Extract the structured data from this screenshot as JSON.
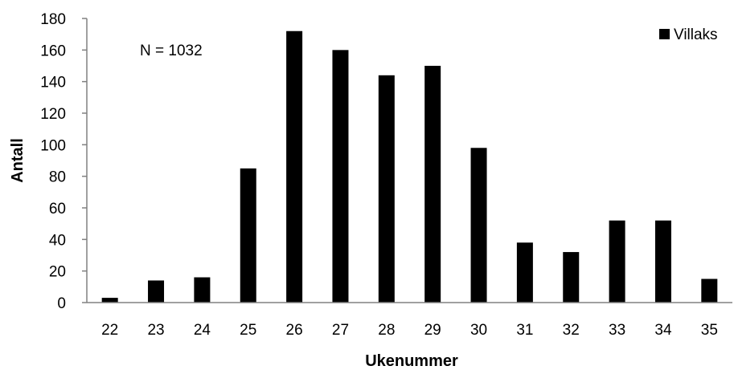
{
  "chart_data": {
    "type": "bar",
    "title": "",
    "xlabel": "Ukenummer",
    "ylabel": "Antall",
    "categories": [
      "22",
      "23",
      "24",
      "25",
      "26",
      "27",
      "28",
      "29",
      "30",
      "31",
      "32",
      "33",
      "34",
      "35"
    ],
    "series": [
      {
        "name": "Villaks",
        "values": [
          3,
          14,
          16,
          85,
          172,
          160,
          144,
          150,
          98,
          38,
          32,
          52,
          52,
          15
        ],
        "color": "#000000"
      }
    ],
    "ylim": [
      0,
      180
    ],
    "yticks": [
      0,
      20,
      40,
      60,
      80,
      100,
      120,
      140,
      160,
      180
    ],
    "ytick_labels": [
      "0",
      "20",
      "40",
      "60",
      "80",
      "100",
      "120",
      "140",
      "160",
      "180"
    ],
    "grid": false,
    "legend_position": "top-right",
    "annotation": "N = 1032"
  }
}
